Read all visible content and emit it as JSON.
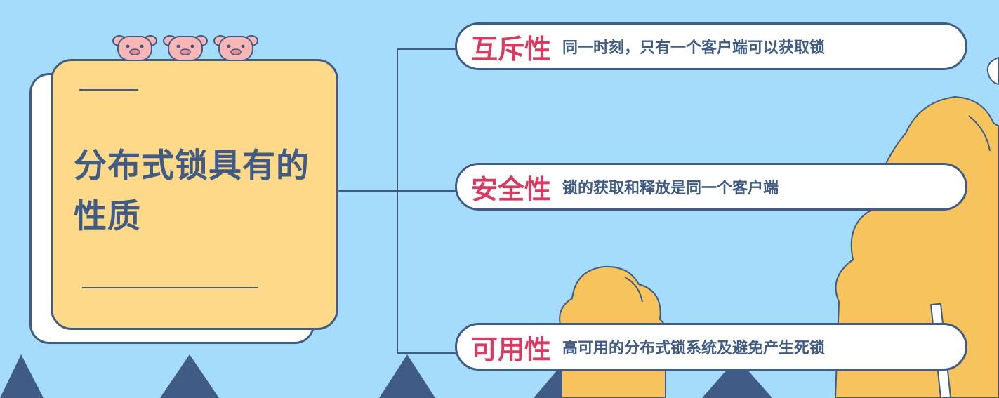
{
  "title": "分布式锁具有的性质",
  "properties": [
    {
      "name": "互斥性",
      "description": "同一时刻，只有一个客户端可以获取锁"
    },
    {
      "name": "安全性",
      "description": "锁的获取和释放是同一个客户端"
    },
    {
      "name": "可用性",
      "description": "高可用的分布式锁系统及避免产生死锁"
    }
  ],
  "colors": {
    "background": "#a6dcfb",
    "title_card": "#fdd989",
    "outline": "#3f5b86",
    "property_name": "#d93a5f",
    "tree": "#f7c35c",
    "pig": "#f8b6b6"
  }
}
